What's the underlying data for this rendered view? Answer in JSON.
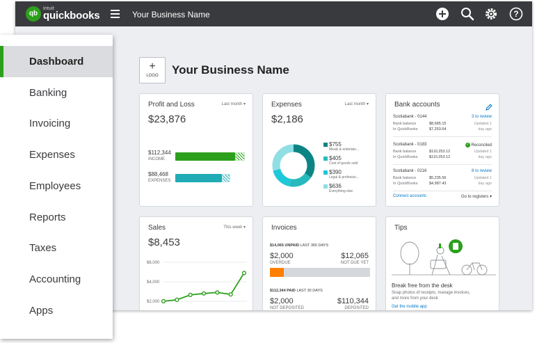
{
  "topbar": {
    "logo_mark": "qb",
    "brand_small": "intuit",
    "brand": "quickbooks",
    "business_name": "Your Business Name",
    "icons": [
      "plus-circle-icon",
      "search-icon",
      "gear-icon",
      "help-icon"
    ]
  },
  "sidebar": {
    "items": [
      {
        "label": "Dashboard",
        "active": true
      },
      {
        "label": "Banking"
      },
      {
        "label": "Invoicing"
      },
      {
        "label": "Expenses"
      },
      {
        "label": "Employees"
      },
      {
        "label": "Reports"
      },
      {
        "label": "Taxes"
      },
      {
        "label": "Accounting"
      },
      {
        "label": "Apps"
      }
    ]
  },
  "header": {
    "logo_plus": "+",
    "logo_label": "LOGO",
    "title": "Your Business Name"
  },
  "profit_loss": {
    "title": "Profit and Loss",
    "period": "Last month",
    "total": "$23,876",
    "income_value": "$112,344",
    "income_label": "INCOME",
    "expenses_value": "$88,468",
    "expenses_label": "EXPENSES"
  },
  "expenses": {
    "title": "Expenses",
    "period": "Last month",
    "total": "$2,186",
    "items": [
      {
        "value": "$755",
        "label": "Meals & entertain...",
        "color": "#0d8484"
      },
      {
        "value": "$405",
        "label": "Cost of goods sold",
        "color": "#28b9bc"
      },
      {
        "value": "$390",
        "label": "Legal & professio...",
        "color": "#1ec8d8"
      },
      {
        "value": "$636",
        "label": "Everything else",
        "color": "#8fdfe4"
      }
    ]
  },
  "bank_accounts": {
    "title": "Bank accounts",
    "accounts": [
      {
        "name": "Scotiabank - 0144",
        "status": "3 to review",
        "bank_label": "Bank balance",
        "bank_balance": "$8,685.15",
        "qb_label": "In QuickBooks",
        "qb_balance": "$7,253.64",
        "updated1": "Updated 1",
        "updated2": "day ago"
      },
      {
        "name": "Scotiabank - 0183",
        "status": "Reconciled",
        "bank_label": "Bank balance",
        "bank_balance": "$110,253.12",
        "qb_label": "In QuickBooks",
        "qb_balance": "$110,253.12",
        "updated1": "Updated 1",
        "updated2": "day ago"
      },
      {
        "name": "Scotiabank - 0216",
        "status": "8 to review",
        "bank_label": "Bank balance",
        "bank_balance": "$5,235.56",
        "qb_label": "In QuickBooks",
        "qb_balance": "$4,987.43",
        "updated1": "Updated 1",
        "updated2": "day ago"
      }
    ],
    "connect": "Connect accounts",
    "goto": "Go to registers"
  },
  "sales": {
    "title": "Sales",
    "period": "This week",
    "total": "$8,453",
    "y_labels": [
      "$6,000",
      "$4,000",
      "$2,000"
    ]
  },
  "invoices": {
    "title": "Invoices",
    "unpaid_amount": "$14,065",
    "unpaid_label": "UNPAID",
    "unpaid_period": "LAST 365 DAYS",
    "overdue_value": "$2,000",
    "overdue_label": "OVERDUE",
    "notdue_value": "$12,065",
    "notdue_label": "NOT DUE YET",
    "overdue_fraction": 0.14,
    "paid_amount": "$112,344",
    "paid_label": "PAID",
    "paid_period": "LAST 30 DAYS",
    "notdeposited_value": "$2,000",
    "notdeposited_label": "NOT DEPOSITED",
    "deposited_value": "$110,344",
    "deposited_label": "DEPOSITED"
  },
  "tips": {
    "title": "Tips",
    "headline": "Break free from the desk",
    "body1": "Snap photos of receipts, manage invoices,",
    "body2": "and more from your desk",
    "link": "Get the mobile app"
  },
  "chart_data": [
    {
      "type": "line",
      "title": "Sales",
      "series": [
        {
          "values": [
            2000,
            2150,
            2650,
            2800,
            2900,
            2700,
            4900
          ]
        }
      ],
      "ylim": [
        2000,
        6000
      ],
      "y_ticks": [
        "$6,000",
        "$4,000",
        "$2,000"
      ],
      "grid": true
    },
    {
      "type": "pie",
      "title": "Expenses",
      "categories": [
        "Meals & entertain...",
        "Cost of goods sold",
        "Legal & professio...",
        "Everything else"
      ],
      "values": [
        755,
        405,
        390,
        636
      ]
    }
  ],
  "colors": {
    "brand_green": "#2ca01c",
    "topbar": "#393a3d",
    "income_bar": "#2ca01c",
    "expense_bar": "#21abb5",
    "overdue_bar": "#ff8000",
    "link_blue": "#0077c5"
  }
}
